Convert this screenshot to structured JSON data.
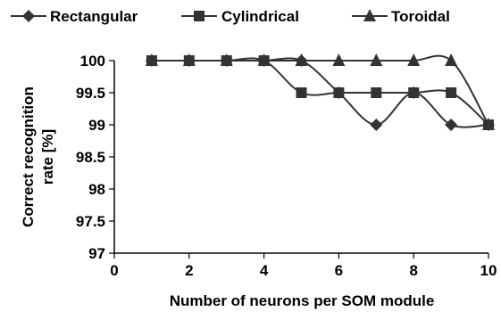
{
  "chart_data": {
    "type": "line",
    "xlabel": "Number of neurons per SOM module",
    "ylabel": "Correct recognition rate [%]",
    "ylabel_lines": [
      "Correct recognition",
      "rate [%]"
    ],
    "xlim": [
      0,
      10
    ],
    "ylim": [
      97,
      100
    ],
    "xticks": [
      0,
      2,
      4,
      6,
      8,
      10
    ],
    "yticks": [
      97,
      97.5,
      98,
      98.5,
      99,
      99.5,
      100
    ],
    "xtick_labels": [
      "0",
      "2",
      "4",
      "6",
      "8",
      "10"
    ],
    "ytick_labels": [
      "97",
      "97.5",
      "98",
      "98.5",
      "99",
      "99.5",
      "100"
    ],
    "grid": false,
    "legend_position": "top",
    "line_color": "#333333",
    "series": [
      {
        "name": "Rectangular",
        "marker": "diamond",
        "x": [
          1,
          2,
          3,
          4,
          5,
          6,
          7,
          8,
          9,
          10
        ],
        "y": [
          100,
          100,
          100,
          100,
          100,
          99.5,
          99,
          99.5,
          99,
          99
        ]
      },
      {
        "name": "Cylindrical",
        "marker": "square",
        "x": [
          1,
          2,
          3,
          4,
          5,
          6,
          7,
          8,
          9,
          10
        ],
        "y": [
          100,
          100,
          100,
          100,
          99.5,
          99.5,
          99.5,
          99.5,
          99.5,
          99
        ]
      },
      {
        "name": "Toroidal",
        "marker": "triangle",
        "x": [
          1,
          2,
          3,
          4,
          5,
          6,
          7,
          8,
          9,
          10
        ],
        "y": [
          100,
          100,
          100,
          100,
          100,
          100,
          100,
          100,
          100,
          99
        ]
      }
    ]
  }
}
